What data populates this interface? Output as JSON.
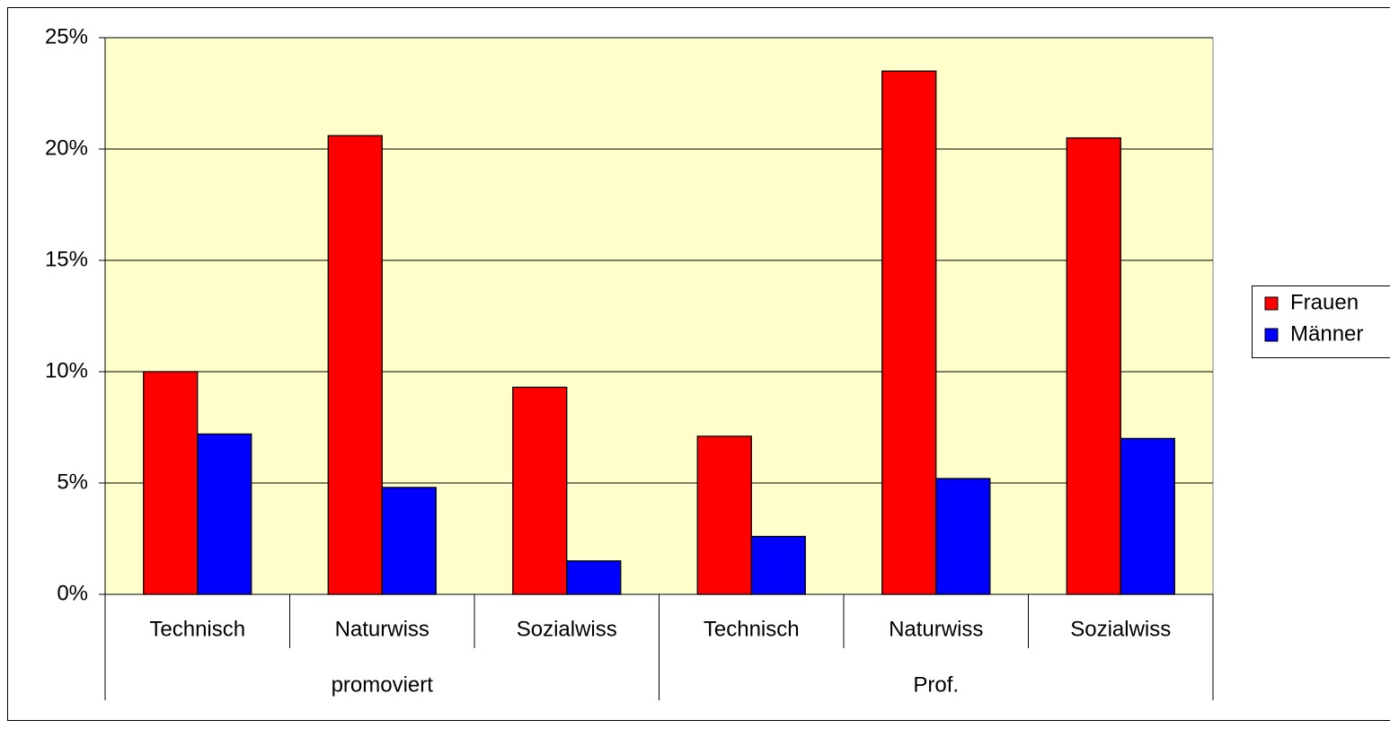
{
  "chart_data": {
    "type": "bar",
    "groups": [
      {
        "name": "promoviert",
        "categories": [
          "Technisch",
          "Naturwiss",
          "Sozialwiss"
        ]
      },
      {
        "name": "Prof.",
        "categories": [
          "Technisch",
          "Naturwiss",
          "Sozialwiss"
        ]
      }
    ],
    "series": [
      {
        "name": "Frauen",
        "color": "#ff0000",
        "values": [
          10,
          20.6,
          9.3,
          7.1,
          23.5,
          20.5
        ]
      },
      {
        "name": "Männer",
        "color": "#0000ff",
        "values": [
          7.2,
          4.8,
          1.5,
          2.6,
          5.2,
          7.0
        ]
      }
    ],
    "ylim": [
      0,
      25
    ],
    "yticks": [
      {
        "value": 0,
        "label": "0%"
      },
      {
        "value": 5,
        "label": "5%"
      },
      {
        "value": 10,
        "label": "10%"
      },
      {
        "value": 15,
        "label": "15%"
      },
      {
        "value": 20,
        "label": "20%"
      },
      {
        "value": 25,
        "label": "25%"
      }
    ],
    "grid": true,
    "legend": "right",
    "plot_background": "#ffffcc"
  }
}
